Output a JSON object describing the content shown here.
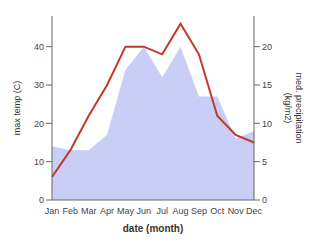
{
  "chart_data": {
    "type": "line",
    "categories": [
      "Jan",
      "Feb",
      "Mar",
      "Apr",
      "May",
      "Jun",
      "Jul",
      "Aug",
      "Sep",
      "Oct",
      "Nov",
      "Dec"
    ],
    "series": [
      {
        "type": "area",
        "axis": "y2",
        "color": "#c8cef5",
        "values": [
          7,
          6.5,
          6.5,
          8.5,
          17,
          20,
          16,
          20,
          13.5,
          13.5,
          8,
          9
        ]
      },
      {
        "type": "line",
        "color": "#c0392b",
        "values": [
          6,
          13,
          22,
          30,
          40,
          40,
          38,
          46,
          38,
          22,
          17,
          15
        ]
      }
    ],
    "xlabel": "date (month)",
    "ylabel": "max temp (C)",
    "y2label": "med. precipitation\n(kg/m2)",
    "ylim": [
      0,
      48
    ],
    "yticks": [
      0,
      10,
      20,
      30,
      40
    ],
    "y2lim": [
      0,
      24
    ],
    "y2ticks": [
      0,
      5,
      10,
      15,
      20
    ],
    "grid": false
  }
}
